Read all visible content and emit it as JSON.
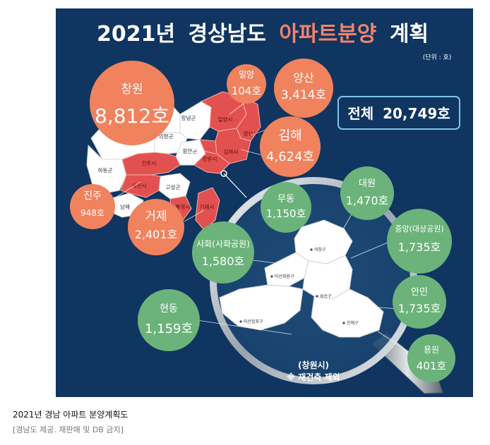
{
  "title": {
    "year": "2021년",
    "region": "경상남도",
    "highlight": "아파트분양",
    "suffix": "계획"
  },
  "unit": "(단위 : 호)",
  "total": {
    "label": "전체",
    "value": "20,749호"
  },
  "province_bubbles": [
    {
      "name": "창원",
      "value": "8,812호"
    },
    {
      "name": "밀양",
      "value": "104호"
    },
    {
      "name": "양산",
      "value": "3,414호"
    },
    {
      "name": "김해",
      "value": "4,624호"
    },
    {
      "name": "진주",
      "value": "948호"
    },
    {
      "name": "거제",
      "value": "2,401호"
    }
  ],
  "map_labels": {
    "changnyeong": "창녕군",
    "miryang": "밀양시",
    "yangsan": "양산시",
    "uiryeong": "의령군",
    "haman": "함안군",
    "gimhae": "김해시",
    "hadong": "하동군",
    "jinju": "진주시",
    "changwon": "창원시",
    "sacheon": "사천시",
    "goseong": "고성군",
    "namhae": "남해",
    "tongyeong": "통영시",
    "geoje": "거제시"
  },
  "changwon_bubbles": [
    {
      "name": "무동",
      "value": "1,150호"
    },
    {
      "name": "대원",
      "value": "1,470호"
    },
    {
      "name": "사화(사화공원)",
      "value": "1,580호"
    },
    {
      "name": "중앙(대상공원)",
      "value": "1,735호"
    },
    {
      "name": "안민",
      "value": "1,735호"
    },
    {
      "name": "현동",
      "value": "1,159호"
    },
    {
      "name": "용원",
      "value": "401호"
    }
  ],
  "district_labels": {
    "uichang": "의창구",
    "masanhoewon": "마산회원구",
    "seongsan": "성산구",
    "masanhappo": "마산합포구",
    "jinhae": "진해구"
  },
  "inset": {
    "city": "(창원시)",
    "note": "※ 재건축 제외"
  },
  "colors": {
    "background": "#0f3560",
    "bubble_orange": "#f0825e",
    "bubble_green": "#6bb37a",
    "highlight_region": "#e2514f",
    "total_box_border": "#7fc3e8",
    "title_highlight": "#f2836b"
  },
  "caption": {
    "title": "2021년 경남 아파트 분양계획도",
    "source": "[경남도 제공. 재판매 및 DB 금지]"
  }
}
